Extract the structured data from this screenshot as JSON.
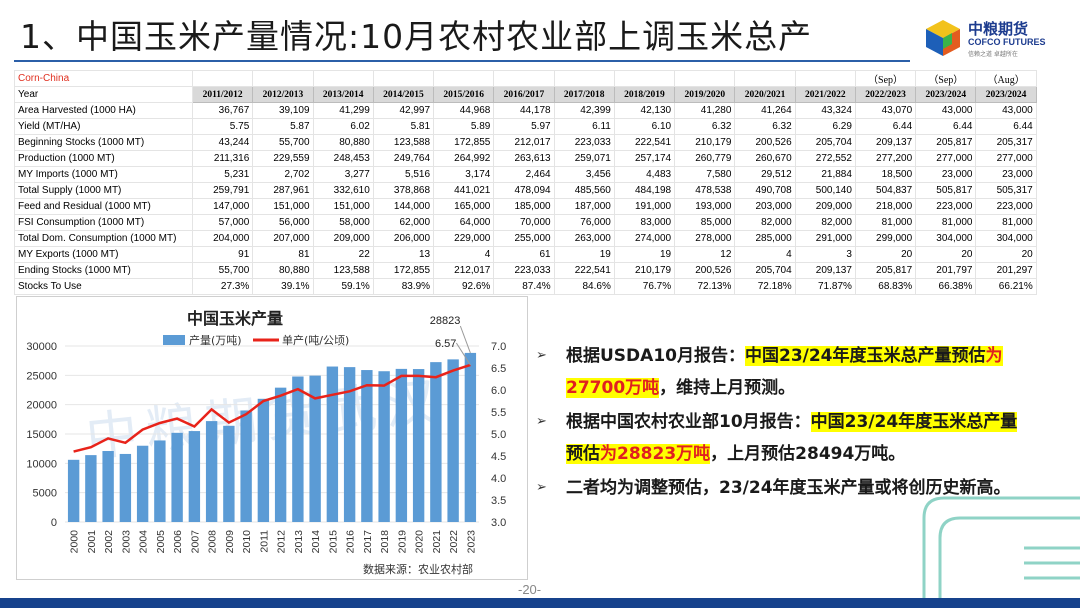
{
  "title": "1、中国玉米产量情况:10月农村农业部上调玉米总产",
  "logo": {
    "cn": "中粮期货",
    "en": "COFCO FUTURES",
    "slogan": "信赖之道 卓越所在"
  },
  "table": {
    "caption": "Corn-China",
    "notes": [
      "",
      "",
      "",
      "",
      "",
      "",
      "",
      "",
      "",
      "",
      "",
      "（Sep）",
      "（Sep）",
      "（Aug）"
    ],
    "header_label": "Year",
    "years": [
      "2011/2012",
      "2012/2013",
      "2013/2014",
      "2014/2015",
      "2015/2016",
      "2016/2017",
      "2017/2018",
      "2018/2019",
      "2019/2020",
      "2020/2021",
      "2021/2022",
      "2022/2023",
      "2023/2024",
      "2023/2024"
    ],
    "rows": [
      {
        "label": "Area Harvested (1000 HA)",
        "values": [
          "36,767",
          "39,109",
          "41,299",
          "42,997",
          "44,968",
          "44,178",
          "42,399",
          "42,130",
          "41,280",
          "41,264",
          "43,324",
          "43,070",
          "43,000",
          "43,000"
        ]
      },
      {
        "label": "Yield (MT/HA)",
        "values": [
          "5.75",
          "5.87",
          "6.02",
          "5.81",
          "5.89",
          "5.97",
          "6.11",
          "6.10",
          "6.32",
          "6.32",
          "6.29",
          "6.44",
          "6.44",
          "6.44"
        ]
      },
      {
        "label": "Beginning Stocks (1000 MT)",
        "values": [
          "43,244",
          "55,700",
          "80,880",
          "123,588",
          "172,855",
          "212,017",
          "223,033",
          "222,541",
          "210,179",
          "200,526",
          "205,704",
          "209,137",
          "205,817",
          "205,317"
        ]
      },
      {
        "label": "Production (1000 MT)",
        "values": [
          "211,316",
          "229,559",
          "248,453",
          "249,764",
          "264,992",
          "263,613",
          "259,071",
          "257,174",
          "260,779",
          "260,670",
          "272,552",
          "277,200",
          "277,000",
          "277,000"
        ]
      },
      {
        "label": "MY Imports (1000 MT)",
        "values": [
          "5,231",
          "2,702",
          "3,277",
          "5,516",
          "3,174",
          "2,464",
          "3,456",
          "4,483",
          "7,580",
          "29,512",
          "21,884",
          "18,500",
          "23,000",
          "23,000"
        ]
      },
      {
        "label": "Total Supply (1000 MT)",
        "values": [
          "259,791",
          "287,961",
          "332,610",
          "378,868",
          "441,021",
          "478,094",
          "485,560",
          "484,198",
          "478,538",
          "490,708",
          "500,140",
          "504,837",
          "505,817",
          "505,317"
        ]
      },
      {
        "label": "Feed and Residual (1000 MT)",
        "values": [
          "147,000",
          "151,000",
          "151,000",
          "144,000",
          "165,000",
          "185,000",
          "187,000",
          "191,000",
          "193,000",
          "203,000",
          "209,000",
          "218,000",
          "223,000",
          "223,000"
        ]
      },
      {
        "label": "FSI Consumption (1000 MT)",
        "values": [
          "57,000",
          "56,000",
          "58,000",
          "62,000",
          "64,000",
          "70,000",
          "76,000",
          "83,000",
          "85,000",
          "82,000",
          "82,000",
          "81,000",
          "81,000",
          "81,000"
        ]
      },
      {
        "label": "Total Dom. Consumption (1000 MT)",
        "values": [
          "204,000",
          "207,000",
          "209,000",
          "206,000",
          "229,000",
          "255,000",
          "263,000",
          "274,000",
          "278,000",
          "285,000",
          "291,000",
          "299,000",
          "304,000",
          "304,000"
        ]
      },
      {
        "label": "MY Exports (1000 MT)",
        "values": [
          "91",
          "81",
          "22",
          "13",
          "4",
          "61",
          "19",
          "19",
          "12",
          "4",
          "3",
          "20",
          "20",
          "20"
        ]
      },
      {
        "label": "Ending Stocks (1000 MT)",
        "values": [
          "55,700",
          "80,880",
          "123,588",
          "172,855",
          "212,017",
          "223,033",
          "222,541",
          "210,179",
          "200,526",
          "205,704",
          "209,137",
          "205,817",
          "201,797",
          "201,297"
        ]
      },
      {
        "label": "Stocks To Use",
        "values": [
          "27.3%",
          "39.1%",
          "59.1%",
          "83.9%",
          "92.6%",
          "87.4%",
          "84.6%",
          "76.7%",
          "72.13%",
          "72.18%",
          "71.87%",
          "68.83%",
          "66.38%",
          "66.21%"
        ]
      }
    ]
  },
  "chart_data": {
    "type": "bar",
    "title": "中国玉米产量",
    "source": "数据来源：农业农村部",
    "watermark": "中粮期货武汉",
    "categories": [
      "2000",
      "2001",
      "2002",
      "2003",
      "2004",
      "2005",
      "2006",
      "2007",
      "2008",
      "2009",
      "2010",
      "2011",
      "2012",
      "2013",
      "2014",
      "2015",
      "2016",
      "2017",
      "2018",
      "2019",
      "2020",
      "2021",
      "2022",
      "2023"
    ],
    "series": [
      {
        "name": "产量(万吨)",
        "type": "bar",
        "axis": "left",
        "color": "#5b9bd5",
        "values": [
          10600,
          11400,
          12100,
          11600,
          13000,
          13900,
          15200,
          15500,
          17200,
          16400,
          19000,
          21000,
          22900,
          24800,
          24950,
          26500,
          26400,
          25900,
          25700,
          26100,
          26070,
          27250,
          27720,
          28823
        ]
      },
      {
        "name": "单产(吨/公顷)",
        "type": "line",
        "axis": "right",
        "color": "#e8231a",
        "values": [
          4.6,
          4.7,
          4.9,
          4.8,
          5.1,
          5.25,
          5.35,
          5.17,
          5.56,
          5.26,
          5.45,
          5.75,
          5.87,
          6.02,
          5.81,
          5.89,
          5.97,
          6.11,
          6.1,
          6.32,
          6.32,
          6.29,
          6.44,
          6.57
        ]
      }
    ],
    "y_left": {
      "min": 0,
      "max": 30000,
      "ticks": [
        "0",
        "5000",
        "10000",
        "15000",
        "20000",
        "25000",
        "30000"
      ]
    },
    "y_right": {
      "min": 3.0,
      "max": 7.0,
      "ticks": [
        "3.0",
        "3.5",
        "4.0",
        "4.5",
        "5.0",
        "5.5",
        "6.0",
        "6.5",
        "7.0"
      ]
    },
    "annotations": [
      {
        "text": "28823",
        "target": "bar-last"
      },
      {
        "text": "6.57",
        "target": "line-last"
      }
    ]
  },
  "bullets": [
    {
      "segments": [
        {
          "t": "根据USDA10月报告：",
          "s": "plain"
        },
        {
          "t": "中国23/24年度玉米总产量预估",
          "s": "hl"
        },
        {
          "t": "为27700万吨",
          "s": "hl-red"
        },
        {
          "t": "，维持上月预测。",
          "s": "plain"
        }
      ]
    },
    {
      "segments": [
        {
          "t": "根据中国农村农业部10月报告：",
          "s": "plain"
        },
        {
          "t": "中国23/24年度玉米总产量预估",
          "s": "hl"
        },
        {
          "t": "为28823万吨",
          "s": "hl-red"
        },
        {
          "t": "，上月预估28494万吨。",
          "s": "plain"
        }
      ]
    },
    {
      "segments": [
        {
          "t": "二者均为调整预估，23/24年度玉米产量或将创历史新高。",
          "s": "plain"
        }
      ]
    }
  ],
  "bullet_symbol": "➢",
  "page_number": "-20-",
  "colors": {
    "brand_blue": "#16428c",
    "bar": "#5b9bd5",
    "line": "#e8231a",
    "highlight": "#ffff00",
    "accent_red": "#e02020"
  }
}
